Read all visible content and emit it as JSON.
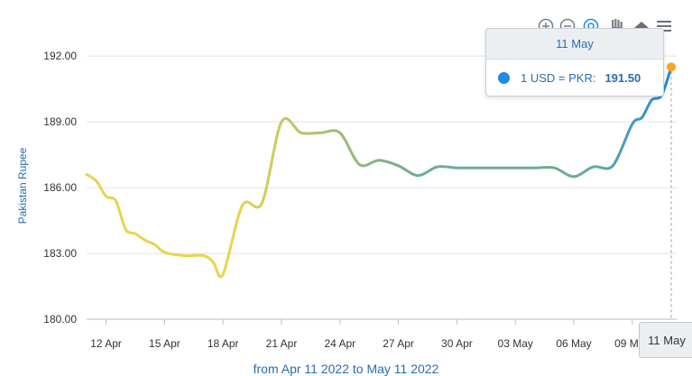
{
  "chart_data": {
    "type": "line",
    "ylabel": "Pakistan Rupee",
    "xlabel": "",
    "ylim": [
      180,
      192.5
    ],
    "yticks": [
      "192.00",
      "189.00",
      "186.00",
      "183.00",
      "180.00"
    ],
    "ytick_values": [
      192,
      189,
      186,
      183,
      180
    ],
    "xtick_labels": [
      "12 Apr",
      "15 Apr",
      "18 Apr",
      "21 Apr",
      "24 Apr",
      "27 Apr",
      "30 Apr",
      "03 May",
      "06 May",
      "09 May"
    ],
    "xtick_dates": [
      "2022-04-12",
      "2022-04-15",
      "2022-04-18",
      "2022-04-21",
      "2022-04-24",
      "2022-04-27",
      "2022-04-30",
      "2022-05-03",
      "2022-05-06",
      "2022-05-09"
    ],
    "x_range": [
      "2022-04-11",
      "2022-05-11"
    ],
    "grid": true,
    "series": [
      {
        "values": [
          [
            "2022-04-11",
            186.6
          ],
          [
            "2022-04-11.5",
            186.3
          ],
          [
            "2022-04-12",
            185.6
          ],
          [
            "2022-04-12.5",
            185.4
          ],
          [
            "2022-04-13",
            184.1
          ],
          [
            "2022-04-13.5",
            183.9
          ],
          [
            "2022-04-14",
            183.6
          ],
          [
            "2022-04-14.5",
            183.4
          ],
          [
            "2022-04-15",
            183.05
          ],
          [
            "2022-04-16",
            182.9
          ],
          [
            "2022-04-17",
            182.9
          ],
          [
            "2022-04-17.5",
            182.6
          ],
          [
            "2022-04-18",
            182.05
          ],
          [
            "2022-04-19",
            185.2
          ],
          [
            "2022-04-20",
            185.3
          ],
          [
            "2022-04-21",
            189.0
          ],
          [
            "2022-04-22",
            188.5
          ],
          [
            "2022-04-23",
            188.5
          ],
          [
            "2022-04-24",
            188.5
          ],
          [
            "2022-04-25",
            187.05
          ],
          [
            "2022-04-26",
            187.25
          ],
          [
            "2022-04-27",
            187.0
          ],
          [
            "2022-04-28",
            186.55
          ],
          [
            "2022-04-29",
            186.95
          ],
          [
            "2022-04-30",
            186.9
          ],
          [
            "2022-05-01",
            186.9
          ],
          [
            "2022-05-02",
            186.9
          ],
          [
            "2022-05-03",
            186.9
          ],
          [
            "2022-05-04",
            186.9
          ],
          [
            "2022-05-05",
            186.9
          ],
          [
            "2022-05-06",
            186.5
          ],
          [
            "2022-05-07",
            186.95
          ],
          [
            "2022-05-08",
            187.0
          ],
          [
            "2022-05-09",
            188.9
          ],
          [
            "2022-05-09.5",
            189.2
          ],
          [
            "2022-05-10",
            190.0
          ],
          [
            "2022-05-10.5",
            190.2
          ],
          [
            "2022-05-11",
            191.5
          ]
        ]
      }
    ],
    "tooltip": {
      "date": "11 May",
      "label": "1 USD = PKR:",
      "value": "191.50"
    },
    "crosshair_label": "11 May",
    "subtitle": "from Apr 11 2022 to May 11 2022",
    "colors": {
      "line_start": "#e8d44d",
      "line_mid": "#6fae8f",
      "line_end": "#1e8ae6",
      "marker": "#f5a623",
      "axis_label": "#2b6cb0",
      "grid": "#e3e3e3"
    }
  },
  "toolbar": {
    "icons": [
      "zoom-in-icon",
      "zoom-out-icon",
      "zoom-reset-icon",
      "pan-icon",
      "home-icon",
      "menu-icon"
    ]
  }
}
